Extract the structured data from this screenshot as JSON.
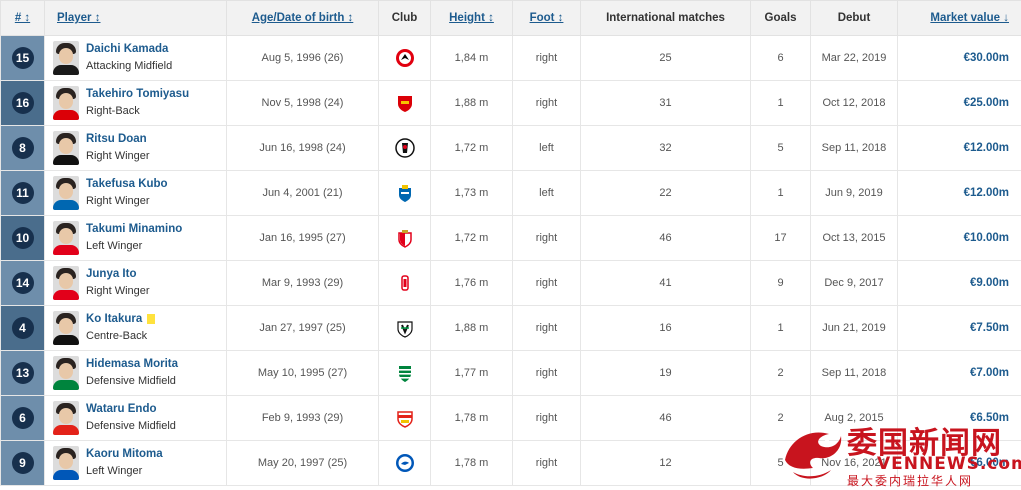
{
  "columns": {
    "num": "# ↕",
    "player": "Player ↕",
    "age": "Age/Date of birth ↕",
    "club": "Club",
    "height": "Height ↕",
    "foot": "Foot ↕",
    "intl": "International matches",
    "goals": "Goals",
    "debut": "Debut",
    "value": "Market value ↓"
  },
  "rows": [
    {
      "num": "15",
      "name": "Daichi Kamada",
      "position": "Attacking Midfield",
      "dob": "Aug 5, 1996 (26)",
      "club_icon": "eintracht-frankfurt-crest",
      "height": "1,84 m",
      "foot": "right",
      "intl": "25",
      "goals": "6",
      "debut": "Mar 22, 2019",
      "value": "€30.00m"
    },
    {
      "num": "16",
      "name": "Takehiro Tomiyasu",
      "position": "Right-Back",
      "dob": "Nov 5, 1998 (24)",
      "club_icon": "arsenal-crest",
      "height": "1,88 m",
      "foot": "right",
      "intl": "31",
      "goals": "1",
      "debut": "Oct 12, 2018",
      "value": "€25.00m"
    },
    {
      "num": "8",
      "name": "Ritsu Doan",
      "position": "Right Winger",
      "dob": "Jun 16, 1998 (24)",
      "club_icon": "sc-freiburg-crest",
      "height": "1,72 m",
      "foot": "left",
      "intl": "32",
      "goals": "5",
      "debut": "Sep 11, 2018",
      "value": "€12.00m"
    },
    {
      "num": "11",
      "name": "Takefusa Kubo",
      "position": "Right Winger",
      "dob": "Jun 4, 2001 (21)",
      "club_icon": "real-sociedad-crest",
      "height": "1,73 m",
      "foot": "left",
      "intl": "22",
      "goals": "1",
      "debut": "Jun 9, 2019",
      "value": "€12.00m"
    },
    {
      "num": "10",
      "name": "Takumi Minamino",
      "position": "Left Winger",
      "dob": "Jan 16, 1995 (27)",
      "club_icon": "as-monaco-crest",
      "height": "1,72 m",
      "foot": "right",
      "intl": "46",
      "goals": "17",
      "debut": "Oct 13, 2015",
      "value": "€10.00m"
    },
    {
      "num": "14",
      "name": "Junya Ito",
      "position": "Right Winger",
      "dob": "Mar 9, 1993 (29)",
      "club_icon": "stade-de-reims-crest",
      "height": "1,76 m",
      "foot": "right",
      "intl": "41",
      "goals": "9",
      "debut": "Dec 9, 2017",
      "value": "€9.00m"
    },
    {
      "num": "4",
      "name": "Ko Itakura",
      "position": "Centre-Back",
      "dob": "Jan 27, 1997 (25)",
      "club_icon": "borussia-monchengladbach-crest",
      "height": "1,88 m",
      "foot": "right",
      "intl": "16",
      "goals": "1",
      "debut": "Jun 21, 2019",
      "value": "€7.50m",
      "yellow_card": true
    },
    {
      "num": "13",
      "name": "Hidemasa Morita",
      "position": "Defensive Midfield",
      "dob": "May 10, 1995 (27)",
      "club_icon": "sporting-cp-crest",
      "height": "1,77 m",
      "foot": "right",
      "intl": "19",
      "goals": "2",
      "debut": "Sep 11, 2018",
      "value": "€7.00m"
    },
    {
      "num": "6",
      "name": "Wataru Endo",
      "position": "Defensive Midfield",
      "dob": "Feb 9, 1993 (29)",
      "club_icon": "vfb-stuttgart-crest",
      "height": "1,78 m",
      "foot": "right",
      "intl": "46",
      "goals": "2",
      "debut": "Aug 2, 2015",
      "value": "€6.50m"
    },
    {
      "num": "9",
      "name": "Kaoru Mitoma",
      "position": "Left Winger",
      "dob": "May 20, 1997 (25)",
      "club_icon": "brighton-crest",
      "height": "1,78 m",
      "foot": "right",
      "intl": "12",
      "goals": "5",
      "debut": "Nov 16, 2021",
      "value": "€6.00m"
    }
  ],
  "watermark": {
    "cn_title": "委国新闻网",
    "en_title": "VENNEWS.com",
    "cn_sub": "最大委内瑞拉华人网"
  }
}
